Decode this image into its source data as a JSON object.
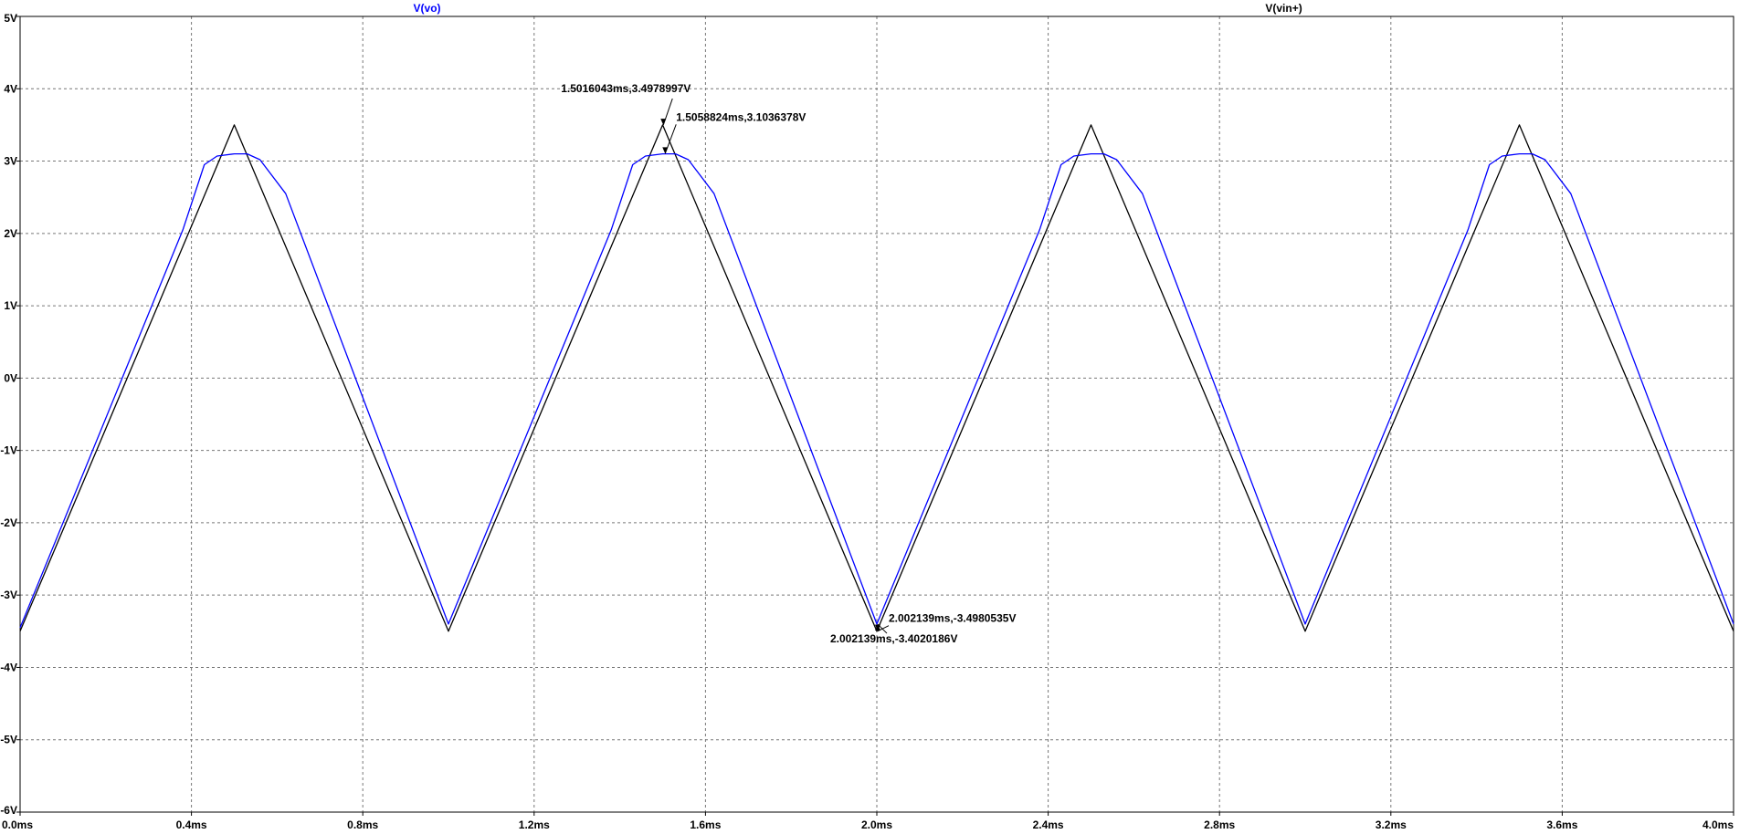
{
  "chart_data": {
    "type": "line",
    "title": "",
    "xlabel": "",
    "ylabel": "",
    "xlim": [
      0,
      4
    ],
    "ylim": [
      -6,
      5
    ],
    "x_unit": "ms",
    "y_unit": "V",
    "grid": true,
    "x_ticks": [
      "0.0ms",
      "0.4ms",
      "0.8ms",
      "1.2ms",
      "1.6ms",
      "2.0ms",
      "2.4ms",
      "2.8ms",
      "3.2ms",
      "3.6ms",
      "4.0ms"
    ],
    "x_tick_values": [
      0,
      0.4,
      0.8,
      1.2,
      1.6,
      2.0,
      2.4,
      2.8,
      3.2,
      3.6,
      4.0
    ],
    "y_ticks": [
      "5V",
      "4V",
      "3V",
      "2V",
      "1V",
      "0V",
      "-1V",
      "-2V",
      "-3V",
      "-4V",
      "-5V",
      "-6V"
    ],
    "y_tick_values": [
      5,
      4,
      3,
      2,
      1,
      0,
      -1,
      -2,
      -3,
      -4,
      -5,
      -6
    ],
    "series": [
      {
        "name": "V(vo)",
        "color": "#0000ff",
        "x": [
          0,
          0.38,
          0.43,
          0.46,
          0.5,
          0.53,
          0.56,
          0.62,
          1.0,
          1.38,
          1.43,
          1.46,
          1.5,
          1.53,
          1.56,
          1.62,
          2.0,
          2.38,
          2.43,
          2.46,
          2.5,
          2.53,
          2.56,
          2.62,
          3.0,
          3.38,
          3.43,
          3.46,
          3.5,
          3.53,
          3.56,
          3.62,
          4.0
        ],
        "y": [
          -3.45,
          2.05,
          2.95,
          3.07,
          3.1,
          3.1,
          3.02,
          2.55,
          -3.4,
          2.05,
          2.95,
          3.07,
          3.1,
          3.1,
          3.02,
          2.55,
          -3.4,
          2.05,
          2.95,
          3.07,
          3.1,
          3.1,
          3.02,
          2.55,
          -3.4,
          2.05,
          2.95,
          3.07,
          3.1,
          3.1,
          3.02,
          2.55,
          -3.4
        ]
      },
      {
        "name": "V(vin+)",
        "color": "#000000",
        "x": [
          0,
          0.5,
          1.0,
          1.5,
          2.0,
          2.5,
          3.0,
          3.5,
          4.0
        ],
        "y": [
          -3.5,
          3.5,
          -3.5,
          3.5,
          -3.5,
          3.5,
          -3.5,
          3.5,
          -3.5
        ]
      }
    ],
    "legend": [
      {
        "label": "V(vo)",
        "color": "#0000ff"
      },
      {
        "label": "V(vin+)",
        "color": "#000000"
      }
    ],
    "annotations": [
      {
        "text": "1.5016043ms,3.4978997V",
        "x": 1.5016043,
        "y": 3.4978997
      },
      {
        "text": "1.5058824ms,3.1036378V",
        "x": 1.5058824,
        "y": 3.1036378
      },
      {
        "text": "2.002139ms,-3.4980535V",
        "x": 2.002139,
        "y": -3.4980535
      },
      {
        "text": "2.002139ms,-3.4020186V",
        "x": 2.002139,
        "y": -3.4020186
      }
    ]
  }
}
